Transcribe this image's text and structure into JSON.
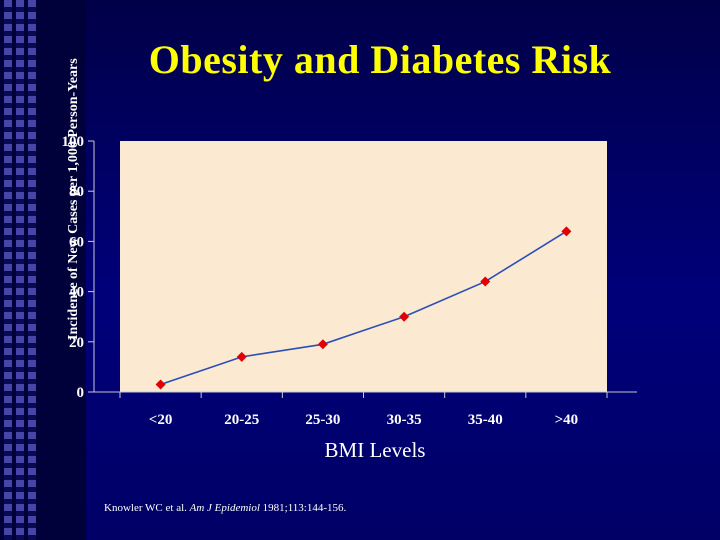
{
  "slide": {
    "title": "Obesity and Diabetes Risk",
    "citation_authors": "Knowler WC et al.",
    "citation_journal": "Am J Epidemiol",
    "citation_rest": "1981;113:144-156."
  },
  "colors": {
    "background": "#00007a",
    "title": "#ffff00",
    "plot_area": "#fbe9d2",
    "line": "#2a4fb5",
    "marker": "#e00000",
    "text": "#ffffff"
  },
  "chart_data": {
    "type": "line",
    "title": "",
    "xlabel": "BMI Levels",
    "ylabel": "Incidence of New Cases per 1,000 Person-Years",
    "categories": [
      "<20",
      "20-25",
      "25-30",
      "30-35",
      "35-40",
      ">40"
    ],
    "series": [
      {
        "values": [
          3,
          14,
          19,
          30,
          44,
          64
        ]
      }
    ],
    "ylim": [
      0,
      100
    ],
    "yticks": [
      "0",
      "20",
      "40",
      "60",
      "80",
      "100"
    ],
    "grid": false,
    "legend": "none"
  }
}
